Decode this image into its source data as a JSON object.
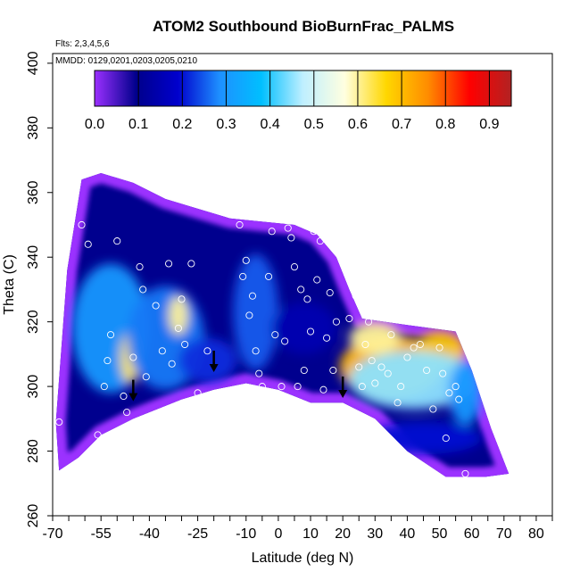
{
  "chart_data": {
    "type": "heatmap",
    "title": "ATOM2 Southbound BioBurnFrac_PALMS",
    "annotations": {
      "flights": "Flts: 2,3,4,5,6",
      "dates": "MMDD: 0129,0201,0203,0205,0210"
    },
    "xlabel": "Latitude (deg N)",
    "ylabel": "Theta (C)",
    "xlim": [
      -70,
      85
    ],
    "ylim": [
      260,
      403
    ],
    "x_ticks": [
      -70,
      -65,
      -60,
      -55,
      -50,
      -45,
      -40,
      -35,
      -30,
      -25,
      -20,
      -15,
      -10,
      -5,
      0,
      5,
      10,
      15,
      20,
      25,
      30,
      35,
      40,
      45,
      50,
      55,
      60,
      65,
      70,
      75,
      80,
      85
    ],
    "x_tick_labels": [
      "-70",
      "-55",
      "-40",
      "-25",
      "-10",
      "0",
      "10",
      "20",
      "30",
      "40",
      "50",
      "60",
      "70",
      "80"
    ],
    "y_ticks": [
      260,
      280,
      300,
      320,
      340,
      360,
      380,
      400
    ],
    "y_tick_labels": [
      "260",
      "280",
      "300",
      "320",
      "340",
      "360",
      "380",
      "400"
    ],
    "colorbar": {
      "ticks": [
        0.0,
        0.1,
        0.2,
        0.3,
        0.4,
        0.5,
        0.6,
        0.7,
        0.8,
        0.9
      ],
      "tick_labels": [
        "0.0",
        "0.1",
        "0.2",
        "0.3",
        "0.4",
        "0.5",
        "0.6",
        "0.7",
        "0.8",
        "0.9"
      ],
      "range": [
        0.0,
        0.95
      ],
      "colors": [
        "#9b30ff",
        "#00008b",
        "#0000cd",
        "#1e90ff",
        "#00bfff",
        "#bfefff",
        "#ffffe0",
        "#ffd700",
        "#ff8c00",
        "#ff0000",
        "#b22222"
      ]
    },
    "envelope": {
      "top": [
        [
          -65.5,
          336
        ],
        [
          -61,
          364
        ],
        [
          -55,
          366
        ],
        [
          -45,
          363
        ],
        [
          -35,
          358
        ],
        [
          -25,
          355
        ],
        [
          -15,
          352
        ],
        [
          -5,
          351
        ],
        [
          5,
          350
        ],
        [
          12,
          347
        ],
        [
          18,
          340
        ],
        [
          22,
          330
        ],
        [
          26,
          321
        ],
        [
          40,
          319
        ],
        [
          55,
          317
        ],
        [
          60,
          305
        ],
        [
          66,
          287
        ],
        [
          71.5,
          273
        ]
      ],
      "bottom": [
        [
          71.5,
          273
        ],
        [
          64,
          272
        ],
        [
          52,
          272
        ],
        [
          40,
          280
        ],
        [
          30,
          290
        ],
        [
          20,
          295
        ],
        [
          10,
          295
        ],
        [
          0,
          299
        ],
        [
          -10,
          301
        ],
        [
          -20,
          299
        ],
        [
          -30,
          296
        ],
        [
          -45,
          290
        ],
        [
          -55,
          285
        ],
        [
          -62,
          278
        ],
        [
          -68,
          274
        ],
        [
          -69,
          289
        ]
      ]
    },
    "field_blobs": [
      {
        "lon": -52,
        "theta": 318,
        "rx": 12,
        "ry": 20,
        "value": 0.3
      },
      {
        "lon": -46,
        "theta": 309,
        "rx": 3,
        "ry": 8,
        "value": 0.63
      },
      {
        "lon": -35,
        "theta": 315,
        "rx": 12,
        "ry": 16,
        "value": 0.27
      },
      {
        "lon": -31,
        "theta": 322,
        "rx": 3,
        "ry": 6,
        "value": 0.6
      },
      {
        "lon": -22,
        "theta": 308,
        "rx": 9,
        "ry": 7,
        "value": 0.22
      },
      {
        "lon": -7,
        "theta": 323,
        "rx": 7,
        "ry": 18,
        "value": 0.25
      },
      {
        "lon": 8,
        "theta": 318,
        "rx": 10,
        "ry": 8,
        "value": 0.15
      },
      {
        "lon": 35,
        "theta": 306,
        "rx": 16,
        "ry": 10,
        "value": 0.7
      },
      {
        "lon": 50,
        "theta": 311,
        "rx": 8,
        "ry": 6,
        "value": 0.68
      },
      {
        "lon": 30,
        "theta": 315,
        "rx": 8,
        "ry": 5,
        "value": 0.6
      },
      {
        "lon": 42,
        "theta": 302,
        "rx": 20,
        "ry": 9,
        "value": 0.45
      },
      {
        "lon": 58,
        "theta": 298,
        "rx": 5,
        "ry": 10,
        "value": 0.3
      },
      {
        "lon": 45,
        "theta": 284,
        "rx": 18,
        "ry": 5,
        "value": 0.2
      }
    ],
    "points": [
      [
        -68,
        289
      ],
      [
        -61,
        350
      ],
      [
        -59,
        344
      ],
      [
        -56,
        285
      ],
      [
        -54,
        300
      ],
      [
        -53,
        308
      ],
      [
        -52,
        316
      ],
      [
        -50,
        345
      ],
      [
        -48,
        297
      ],
      [
        -47,
        292
      ],
      [
        -45,
        309
      ],
      [
        -43,
        337
      ],
      [
        -42,
        330
      ],
      [
        -41,
        303
      ],
      [
        -38,
        325
      ],
      [
        -36,
        311
      ],
      [
        -34,
        338
      ],
      [
        -33,
        307
      ],
      [
        -31,
        318
      ],
      [
        -30,
        327
      ],
      [
        -29,
        313
      ],
      [
        -27,
        338
      ],
      [
        -25,
        298
      ],
      [
        -22,
        311
      ],
      [
        -12,
        350
      ],
      [
        -11,
        334
      ],
      [
        -10,
        339
      ],
      [
        -9,
        322
      ],
      [
        -8,
        328
      ],
      [
        -7,
        311
      ],
      [
        -6,
        304
      ],
      [
        -5,
        300
      ],
      [
        -3,
        334
      ],
      [
        -2,
        348
      ],
      [
        -1,
        316
      ],
      [
        1,
        300
      ],
      [
        2,
        314
      ],
      [
        3,
        349
      ],
      [
        4,
        346
      ],
      [
        5,
        337
      ],
      [
        6,
        300
      ],
      [
        7,
        330
      ],
      [
        8,
        305
      ],
      [
        9,
        327
      ],
      [
        10,
        317
      ],
      [
        11,
        348
      ],
      [
        12,
        333
      ],
      [
        13,
        345
      ],
      [
        14,
        299
      ],
      [
        15,
        315
      ],
      [
        16,
        329
      ],
      [
        17,
        305
      ],
      [
        18,
        320
      ],
      [
        19,
        293
      ],
      [
        22,
        321
      ],
      [
        24,
        328
      ],
      [
        25,
        306
      ],
      [
        26,
        300
      ],
      [
        27,
        313
      ],
      [
        28,
        320
      ],
      [
        29,
        308
      ],
      [
        30,
        301
      ],
      [
        32,
        306
      ],
      [
        34,
        304
      ],
      [
        35,
        316
      ],
      [
        37,
        295
      ],
      [
        38,
        300
      ],
      [
        40,
        309
      ],
      [
        42,
        312
      ],
      [
        44,
        313
      ],
      [
        46,
        305
      ],
      [
        48,
        293
      ],
      [
        50,
        312
      ],
      [
        51,
        304
      ],
      [
        52,
        284
      ],
      [
        53,
        298
      ],
      [
        55,
        300
      ],
      [
        56,
        296
      ],
      [
        58,
        273
      ],
      [
        59,
        313
      ]
    ],
    "arrows": [
      [
        -45,
        296
      ],
      [
        -20,
        305
      ],
      [
        20,
        297
      ]
    ]
  }
}
